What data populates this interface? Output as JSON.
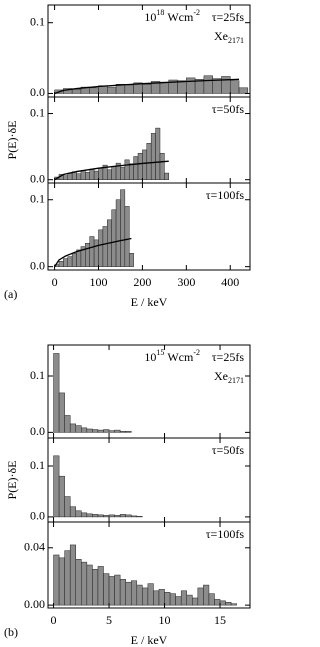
{
  "chart_data": [
    {
      "type": "histogram",
      "label": "τ=25fs",
      "intensity": {
        "base": "10",
        "exp": "18",
        "unit": "Wcm",
        "unit_exp": "-2"
      },
      "species": {
        "base": "Xe",
        "sub": "2171"
      },
      "bins": [
        0,
        20,
        40,
        60,
        80,
        100,
        120,
        140,
        160,
        180,
        200,
        220,
        240,
        260,
        280,
        300,
        320,
        340,
        360,
        380,
        400,
        420,
        440
      ],
      "counts": [
        0.005,
        0.007,
        0.006,
        0.009,
        0.008,
        0.011,
        0.009,
        0.013,
        0.012,
        0.015,
        0.013,
        0.017,
        0.016,
        0.019,
        0.018,
        0.022,
        0.02,
        0.025,
        0.021,
        0.024,
        0.018,
        0.008
      ],
      "fit": {
        "x": [
          0,
          20,
          50,
          100,
          150,
          200,
          250,
          300,
          350,
          420
        ],
        "y": [
          0,
          0.0044,
          0.0069,
          0.0098,
          0.012,
          0.0138,
          0.0154,
          0.0169,
          0.0183,
          0.02
        ]
      },
      "xlim": [
        -15,
        445
      ],
      "ylim": [
        -0.005,
        0.125
      ],
      "xticks": [
        0,
        100,
        200,
        300,
        400
      ],
      "yticks": [
        {
          "value": 0,
          "label": "0.0"
        },
        0.1
      ],
      "color": "#8c8c8c"
    },
    {
      "type": "histogram",
      "label": "τ=50fs",
      "ylabel": "P(E)·δE",
      "bins": [
        0,
        10,
        20,
        30,
        40,
        50,
        60,
        70,
        80,
        90,
        100,
        110,
        120,
        130,
        140,
        150,
        160,
        170,
        180,
        190,
        200,
        210,
        220,
        230,
        240,
        250,
        260
      ],
      "counts": [
        0.004,
        0.008,
        0.006,
        0.01,
        0.012,
        0.009,
        0.014,
        0.011,
        0.016,
        0.013,
        0.018,
        0.022,
        0.015,
        0.02,
        0.025,
        0.019,
        0.03,
        0.024,
        0.035,
        0.04,
        0.045,
        0.055,
        0.07,
        0.078,
        0.04,
        0.01
      ],
      "fit": {
        "x": [
          0,
          20,
          50,
          100,
          150,
          200,
          260
        ],
        "y": [
          0,
          0.0078,
          0.0123,
          0.0174,
          0.0213,
          0.0246,
          0.028
        ]
      },
      "xlim": [
        -15,
        445
      ],
      "ylim": [
        -0.005,
        0.125
      ],
      "xticks": [
        0,
        100,
        200,
        300,
        400
      ],
      "yticks": [
        {
          "value": 0,
          "label": "0.0"
        },
        0.1
      ],
      "color": "#8c8c8c"
    },
    {
      "type": "histogram",
      "label": "τ=100fs",
      "xlabel": "E / keV",
      "panel": "(a)",
      "bins": [
        0,
        10,
        20,
        30,
        40,
        50,
        60,
        70,
        80,
        90,
        100,
        110,
        120,
        130,
        140,
        150,
        160,
        170,
        180
      ],
      "counts": [
        0.003,
        0.008,
        0.012,
        0.015,
        0.02,
        0.025,
        0.03,
        0.035,
        0.045,
        0.04,
        0.055,
        0.06,
        0.07,
        0.085,
        0.1,
        0.115,
        0.09,
        0.02
      ],
      "fit": {
        "x": [
          0,
          10,
          25,
          50,
          100,
          150,
          175
        ],
        "y": [
          0,
          0.01,
          0.0159,
          0.0224,
          0.0318,
          0.0389,
          0.042
        ]
      },
      "xlim": [
        -15,
        445
      ],
      "ylim": [
        -0.005,
        0.125
      ],
      "xticks": [
        0,
        100,
        200,
        300,
        400
      ],
      "yticks": [
        {
          "value": 0,
          "label": "0.0"
        },
        0.1
      ],
      "xticklabels": true,
      "color": "#8c8c8c"
    },
    {
      "type": "histogram",
      "label": "τ=25fs",
      "intensity": {
        "base": "10",
        "exp": "15",
        "unit": "Wcm",
        "unit_exp": "-2"
      },
      "species": {
        "base": "Xe",
        "sub": "2171"
      },
      "bins": [
        0,
        0.5,
        1,
        1.5,
        2,
        2.5,
        3,
        3.5,
        4,
        4.5,
        5,
        5.5,
        6,
        6.5,
        7
      ],
      "counts": [
        0.14,
        0.07,
        0.03,
        0.015,
        0.012,
        0.008,
        0.006,
        0.005,
        0.004,
        0.005,
        0.003,
        0.004,
        0.002,
        0.002
      ],
      "xlim": [
        -0.5,
        17.7
      ],
      "ylim": [
        -0.01,
        0.155
      ],
      "xticks": [
        0,
        5,
        10,
        15
      ],
      "yticks": [
        {
          "value": 0,
          "label": "0.0"
        },
        0.1
      ],
      "color": "#8c8c8c"
    },
    {
      "type": "histogram",
      "label": "τ=50fs",
      "ylabel": "P(E)·δE",
      "bins": [
        0,
        0.5,
        1,
        1.5,
        2,
        2.5,
        3,
        3.5,
        4,
        4.5,
        5,
        5.5,
        6,
        6.5,
        7,
        7.5,
        8
      ],
      "counts": [
        0.12,
        0.08,
        0.04,
        0.02,
        0.012,
        0.008,
        0.006,
        0.005,
        0.004,
        0.003,
        0.004,
        0.003,
        0.005,
        0.004,
        0.002,
        0.001
      ],
      "xlim": [
        -0.5,
        17.7
      ],
      "ylim": [
        -0.01,
        0.155
      ],
      "xticks": [
        0,
        5,
        10,
        15
      ],
      "yticks": [
        {
          "value": 0,
          "label": "0.0"
        },
        0.1
      ],
      "color": "#8c8c8c"
    },
    {
      "type": "histogram",
      "label": "τ=100fs",
      "xlabel": "E / keV",
      "panel": "(b)",
      "bins": [
        0,
        0.5,
        1,
        1.5,
        2,
        2.5,
        3,
        3.5,
        4,
        4.5,
        5,
        5.5,
        6,
        6.5,
        7,
        7.5,
        8,
        8.5,
        9,
        9.5,
        10,
        10.5,
        11,
        11.5,
        12,
        12.5,
        13,
        13.5,
        14,
        14.5,
        15,
        15.5,
        16,
        16.5
      ],
      "counts": [
        0.035,
        0.033,
        0.038,
        0.042,
        0.032,
        0.03,
        0.028,
        0.025,
        0.027,
        0.022,
        0.02,
        0.021,
        0.018,
        0.016,
        0.017,
        0.014,
        0.012,
        0.015,
        0.01,
        0.011,
        0.009,
        0.008,
        0.006,
        0.01,
        0.007,
        0.005,
        0.012,
        0.014,
        0.008,
        0.004,
        0.003,
        0.002,
        0.001
      ],
      "xlim": [
        -0.5,
        17.7
      ],
      "ylim": [
        -0.002,
        0.058
      ],
      "xticks": [
        0,
        5,
        10,
        15
      ],
      "yticks": [
        {
          "value": 0,
          "label": "0.00"
        },
        0.04
      ],
      "xticklabels": true,
      "color": "#8c8c8c"
    }
  ]
}
